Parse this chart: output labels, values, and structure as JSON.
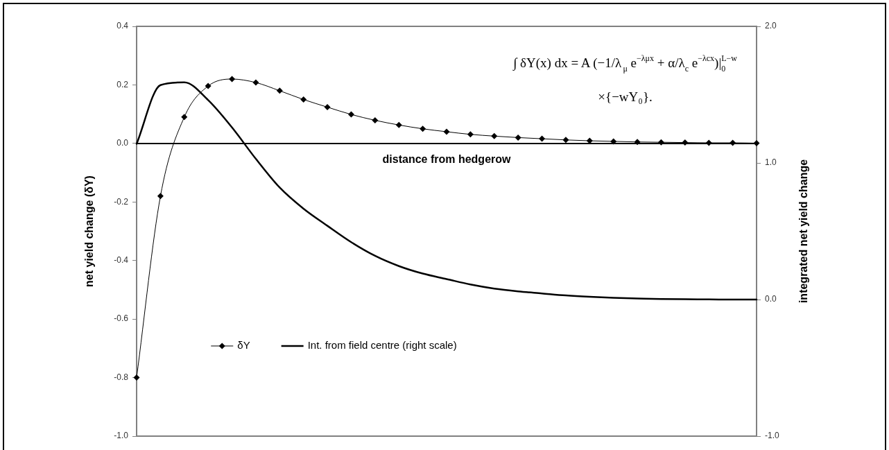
{
  "chart_data": {
    "type": "line",
    "xlabel": "distance from hedgerow",
    "ylabel": "net yield change (δY)",
    "y2label": "integrated net yield change",
    "annotations": [
      "∫ δY(x) dx = A (−1/λ$_{μ}$ e$^{−λμx}$ + α/λ$_{c}$ e$^{−λcx}$)|$_{0}$$^{L−w}$",
      "×{−wY₀}."
    ],
    "categories": [
      null,
      null,
      null,
      null,
      null,
      null,
      null,
      null,
      null,
      null,
      null,
      null,
      null,
      null,
      null,
      null,
      null,
      null,
      null,
      null,
      null,
      null,
      null,
      null,
      null,
      null,
      null
    ],
    "series": [
      {
        "name": "δY",
        "color": "#000000",
        "marker": "diamond",
        "values": [
          -0.8,
          -0.18,
          0.09,
          0.196,
          0.22,
          0.208,
          0.18,
          0.15,
          0.124,
          0.099,
          0.079,
          0.063,
          0.05,
          0.04,
          0.031,
          0.025,
          0.02,
          0.016,
          0.012,
          0.009,
          0.007,
          0.005,
          0.004,
          0.003,
          0.002,
          0.002,
          0.001
        ]
      },
      {
        "name": "Int. from field centre (right scale)",
        "color": "#000000",
        "marker": "none",
        "axis": "y2",
        "values": [
          1.14,
          1.57,
          1.59,
          1.46,
          1.26,
          1.03,
          0.82,
          0.665,
          0.54,
          0.42,
          0.32,
          0.245,
          0.19,
          0.15,
          0.11,
          0.08,
          0.06,
          0.045,
          0.03,
          0.02,
          0.013,
          0.008,
          0.004,
          0.002,
          0.001,
          0,
          0
        ]
      }
    ],
    "ylim": [
      -1,
      0.4
    ],
    "yticks": [
      {
        "value": -1,
        "label": "-1.0"
      },
      -0.8,
      -0.6,
      -0.4,
      -0.2,
      {
        "value": 0,
        "label": "0.0"
      },
      0.2,
      0.4
    ],
    "y2lim": [
      -1,
      2
    ],
    "y2ticks": [
      {
        "value": -1,
        "label": "-1.0"
      },
      {
        "value": 0,
        "label": "0.0"
      },
      {
        "value": 1,
        "label": "1.0"
      },
      {
        "value": 2,
        "label": "2.0"
      }
    ],
    "tick_labels": "y",
    "legend": "bottom left"
  }
}
